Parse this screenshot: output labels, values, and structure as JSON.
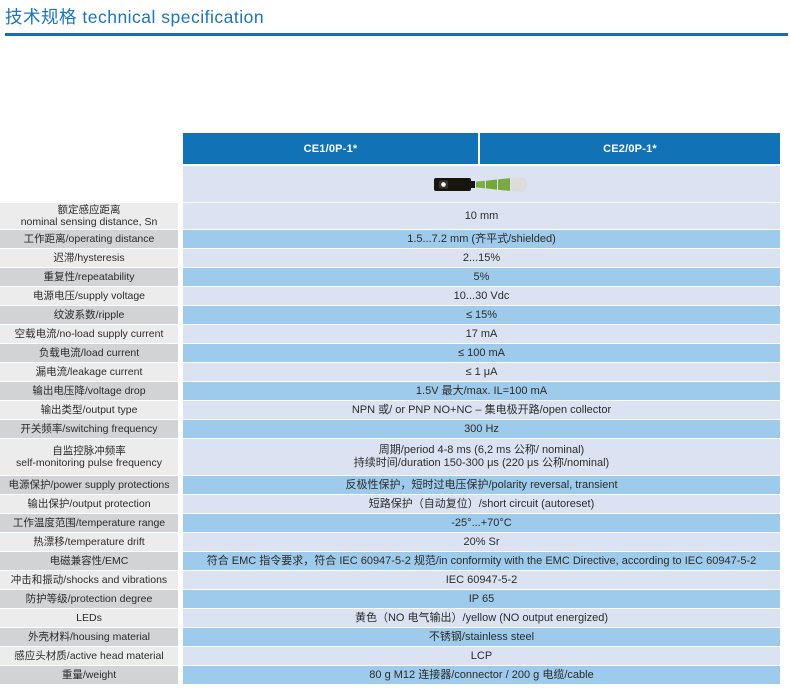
{
  "page": {
    "title": "技术规格 technical specification"
  },
  "table": {
    "column_headers": [
      "CE1/0P-1*",
      "CE2/0P-1*"
    ],
    "product_image": "inductive-proximity-sensor-with-green-sensing-cone",
    "rows": [
      {
        "label": "额定感应距离\nnominal sensing distance, Sn",
        "value": "10 mm",
        "tall_label": true
      },
      {
        "label": "工作距离/operating distance",
        "value": "1.5...7.2 mm (齐平式/shielded)"
      },
      {
        "label": "迟滞/hysteresis",
        "value": "2...15%"
      },
      {
        "label": "重复性/repeatability",
        "value": "5%"
      },
      {
        "label": "电源电压/supply voltage",
        "value": "10...30 Vdc"
      },
      {
        "label": "纹波系数/ripple",
        "value": "≤ 15%"
      },
      {
        "label": "空载电流/no-load supply current",
        "value": "17 mA"
      },
      {
        "label": "负载电流/load current",
        "value": "≤ 100 mA"
      },
      {
        "label": "漏电流/leakage current",
        "value": "≤ 1 μA"
      },
      {
        "label": "输出电压降/voltage drop",
        "value": "1.5V 最大/max. IL=100 mA"
      },
      {
        "label": "输出类型/output type",
        "value": "NPN 或/ or PNP NO+NC – 集电极开路/open collector"
      },
      {
        "label": "开关频率/switching frequency",
        "value": "300 Hz"
      },
      {
        "label": "自监控脉冲频率\nself-monitoring pulse frequency",
        "value": "周期/period 4-8 ms (6,2 ms 公称/ nominal)\n持续时间/duration 150-300 μs (220 μs 公称/nominal)",
        "tall_value": true
      },
      {
        "label": "电源保护/power supply protections",
        "value": "反极性保护，短时过电压保护/polarity reversal, transient"
      },
      {
        "label": "输出保护/output protection",
        "value": "短路保护（自动复位）/short circuit (autoreset)"
      },
      {
        "label": "工作温度范围/temperature range",
        "value": "-25°...+70°C"
      },
      {
        "label": "热漂移/temperature drift",
        "value": "20% Sr"
      },
      {
        "label": "电磁兼容性/EMC",
        "value": "符合 EMC 指令要求，符合 IEC 60947-5-2 规范/in conformity with the EMC Directive, according to IEC 60947-5-2"
      },
      {
        "label": "冲击和振动/shocks and vibrations",
        "value": "IEC 60947-5-2"
      },
      {
        "label": "防护等级/protection degree",
        "value": "IP 65"
      },
      {
        "label": "LEDs",
        "value": "黄色（NO 电气输出）/yellow (NO output energized)"
      },
      {
        "label": "外壳材料/housing material",
        "value": "不锈钢/stainless steel"
      },
      {
        "label": "感应头材质/active head material",
        "value": "LCP"
      },
      {
        "label": "重量/weight",
        "value": "80 g M12 连接器/connector / 200 g 电缆/cable"
      }
    ]
  },
  "colors": {
    "title_blue": "#1b75bc",
    "rule_blue": "#1a6cae",
    "header_bg": "#1173b5",
    "header_text": "#ffffff",
    "value_row_light": "#dbe3f2",
    "value_row_dark": "#9ecbeb",
    "label_row_light": "#ececed",
    "label_row_dark": "#d1d3d4",
    "sensor_body_black": "#16160f",
    "sensor_cone_green": "#74a63c",
    "sensor_tip_gray": "#dcdcd8"
  }
}
